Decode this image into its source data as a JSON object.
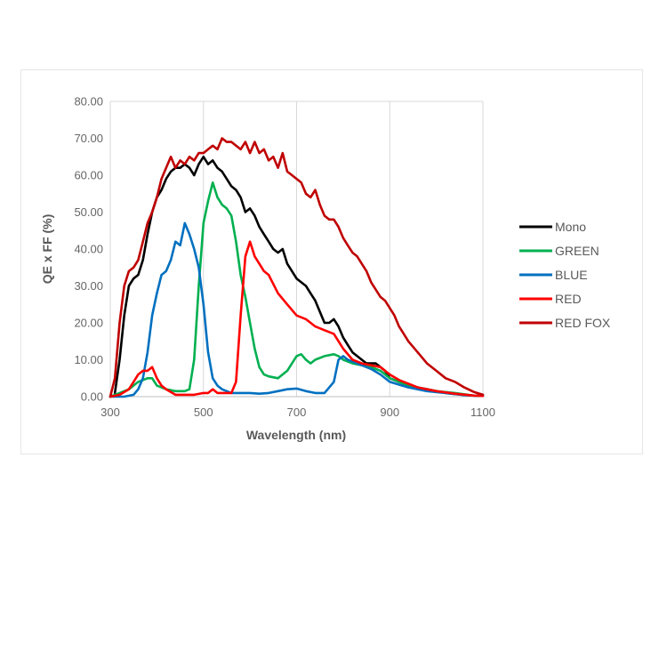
{
  "chart_data": {
    "type": "line",
    "title": "",
    "xlabel": "Wavelength (nm)",
    "ylabel": "QE x FF (%)",
    "xlim": [
      300,
      1100
    ],
    "ylim": [
      0,
      80
    ],
    "xticks": [
      300,
      500,
      700,
      900,
      1100
    ],
    "xtick_labels": [
      "300",
      "500",
      "700",
      "900",
      "1100"
    ],
    "yticks": [
      0,
      10,
      20,
      30,
      40,
      50,
      60,
      70,
      80
    ],
    "ytick_labels": [
      "0.00",
      "10.00",
      "20.00",
      "30.00",
      "40.00",
      "50.00",
      "60.00",
      "70.00",
      "80.00"
    ],
    "grid": "vertical",
    "legend_position": "right",
    "series": [
      {
        "name": "Mono",
        "color": "#000000",
        "x": [
          310,
          320,
          330,
          340,
          350,
          360,
          370,
          380,
          390,
          400,
          410,
          420,
          430,
          440,
          450,
          460,
          470,
          480,
          490,
          500,
          510,
          520,
          530,
          540,
          550,
          560,
          570,
          580,
          590,
          600,
          610,
          620,
          630,
          640,
          650,
          660,
          670,
          680,
          690,
          700,
          710,
          720,
          730,
          740,
          750,
          760,
          770,
          780,
          790,
          800,
          810,
          820,
          830,
          840,
          850,
          860,
          870,
          880,
          890,
          900,
          920,
          940,
          960,
          980,
          1000,
          1020,
          1040,
          1060,
          1080,
          1100
        ],
        "y": [
          1,
          10,
          22,
          30,
          32,
          33,
          37,
          44,
          50,
          54,
          56,
          59,
          61,
          62,
          62,
          63,
          62,
          60,
          63,
          65,
          63,
          64,
          62,
          61,
          59,
          57,
          56,
          54,
          50,
          51,
          49,
          46,
          44,
          42,
          40,
          39,
          40,
          36,
          34,
          32,
          31,
          30,
          28,
          26,
          23,
          20,
          20,
          21,
          19,
          16,
          14,
          12,
          11,
          10,
          9,
          9,
          9,
          8,
          7,
          5,
          4,
          3,
          2.5,
          2,
          1.5,
          1,
          0.7,
          0.5,
          0.3,
          0.2
        ]
      },
      {
        "name": "GREEN",
        "color": "#00b050",
        "x": [
          300,
          320,
          340,
          360,
          380,
          390,
          400,
          420,
          440,
          460,
          470,
          480,
          490,
          500,
          510,
          520,
          530,
          540,
          550,
          560,
          570,
          580,
          590,
          600,
          610,
          620,
          630,
          640,
          660,
          680,
          700,
          710,
          720,
          730,
          740,
          760,
          780,
          790,
          800,
          820,
          840,
          860,
          880,
          900,
          920,
          940,
          960,
          980,
          1000,
          1040,
          1080,
          1100
        ],
        "y": [
          0,
          1,
          2,
          4,
          5,
          5,
          3,
          2,
          1.5,
          1.5,
          2,
          10,
          30,
          47,
          53,
          58,
          54,
          52,
          51,
          49,
          42,
          33,
          27,
          20,
          13,
          8,
          6,
          5.5,
          5,
          7,
          11,
          11.5,
          10,
          9,
          10,
          11,
          11.5,
          11,
          10,
          9,
          8.5,
          8,
          7,
          5,
          4,
          3,
          2.5,
          2,
          1.5,
          1,
          0.3,
          0.2
        ]
      },
      {
        "name": "BLUE",
        "color": "#0070c0",
        "x": [
          300,
          330,
          350,
          360,
          370,
          380,
          390,
          400,
          410,
          420,
          430,
          440,
          450,
          460,
          470,
          480,
          490,
          500,
          510,
          520,
          530,
          540,
          550,
          560,
          580,
          600,
          620,
          640,
          660,
          680,
          700,
          720,
          740,
          760,
          780,
          790,
          800,
          810,
          820,
          840,
          860,
          880,
          900,
          940,
          980,
          1020,
          1060,
          1100
        ],
        "y": [
          0,
          0,
          0.5,
          2,
          5,
          12,
          22,
          28,
          33,
          34,
          37,
          42,
          41,
          47,
          44,
          40,
          35,
          25,
          12,
          5,
          3,
          2,
          1.5,
          1,
          1,
          1,
          0.8,
          1,
          1.5,
          2,
          2.2,
          1.5,
          1,
          1,
          4,
          10,
          11,
          10,
          9.5,
          8.5,
          7.5,
          6,
          4,
          2.5,
          1.5,
          1,
          0.4,
          0.2
        ]
      },
      {
        "name": "RED",
        "color": "#ff0000",
        "x": [
          300,
          320,
          340,
          350,
          360,
          370,
          380,
          390,
          400,
          410,
          420,
          440,
          460,
          480,
          500,
          510,
          520,
          530,
          540,
          560,
          570,
          580,
          590,
          600,
          610,
          620,
          630,
          640,
          660,
          680,
          700,
          720,
          740,
          760,
          780,
          800,
          820,
          840,
          860,
          880,
          900,
          920,
          940,
          960,
          980,
          1000,
          1040,
          1080,
          1100
        ],
        "y": [
          0,
          0.5,
          2,
          4,
          6,
          7,
          7,
          8,
          5,
          3,
          2,
          0.5,
          0.5,
          0.5,
          1,
          1,
          2,
          1,
          1,
          1,
          4,
          22,
          38,
          42,
          38,
          36,
          34,
          33,
          28,
          25,
          22,
          21,
          19,
          18,
          17,
          13,
          10,
          9,
          8.5,
          8,
          6,
          4.5,
          3.5,
          2.5,
          2,
          1.5,
          0.8,
          0.3,
          0.2
        ]
      },
      {
        "name": "RED FOX",
        "color": "#c00000",
        "x": [
          300,
          310,
          320,
          330,
          340,
          350,
          360,
          370,
          380,
          390,
          400,
          410,
          420,
          430,
          440,
          450,
          460,
          470,
          480,
          490,
          500,
          510,
          520,
          530,
          540,
          550,
          560,
          570,
          580,
          590,
          600,
          610,
          620,
          630,
          640,
          650,
          660,
          670,
          680,
          690,
          700,
          710,
          720,
          730,
          740,
          750,
          760,
          770,
          780,
          790,
          800,
          810,
          820,
          830,
          840,
          850,
          860,
          870,
          880,
          890,
          900,
          910,
          920,
          930,
          940,
          960,
          980,
          1000,
          1020,
          1040,
          1060,
          1080,
          1100
        ],
        "y": [
          0,
          5,
          20,
          30,
          34,
          35,
          37,
          42,
          47,
          50,
          54,
          59,
          62,
          65,
          62,
          64,
          63,
          65,
          64,
          66,
          66,
          67,
          68,
          67,
          70,
          69,
          69,
          68,
          67,
          69,
          66,
          69,
          66,
          67,
          64,
          65,
          62,
          66,
          61,
          60,
          59,
          58,
          55,
          54,
          56,
          52,
          49,
          48,
          48,
          46,
          43,
          41,
          39,
          38,
          36,
          34,
          31,
          29,
          27,
          26,
          24,
          22,
          19,
          17,
          15,
          12,
          9,
          7,
          5,
          4,
          2.5,
          1.3,
          0.5
        ]
      }
    ]
  }
}
